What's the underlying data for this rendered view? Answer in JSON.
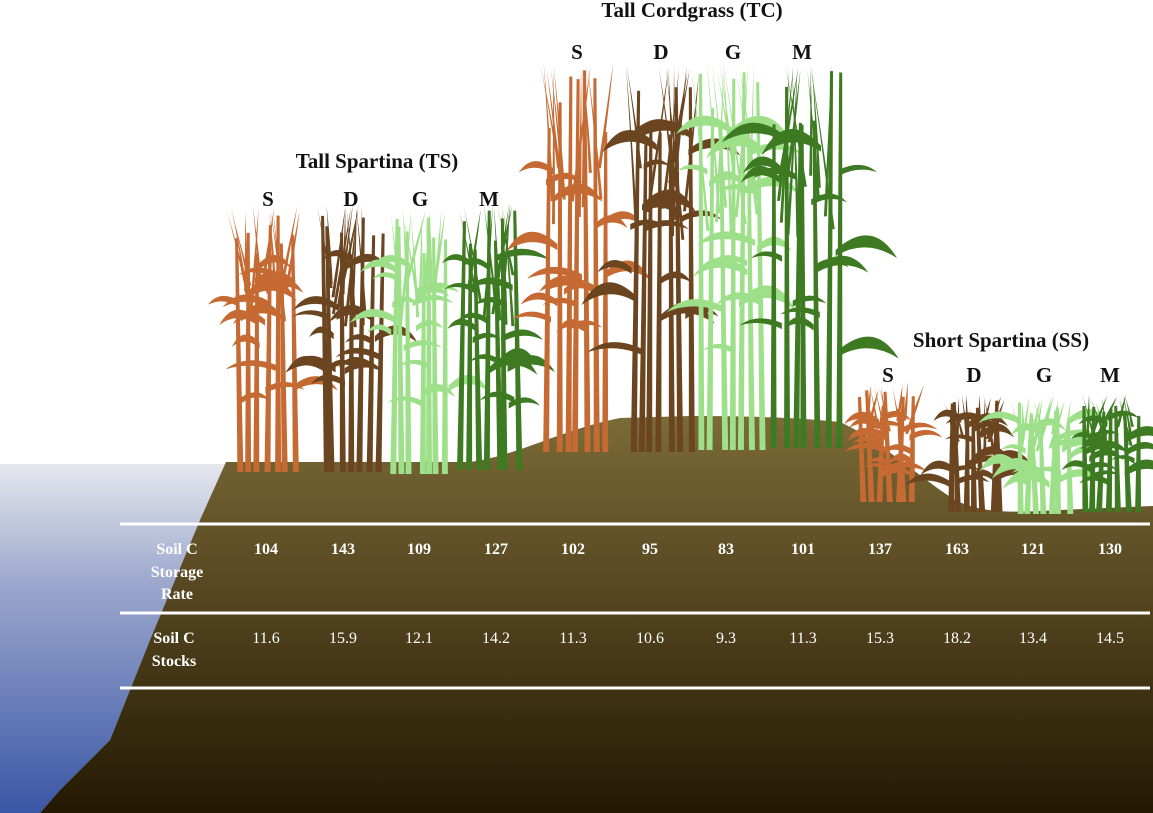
{
  "groups": [
    {
      "id": "ts",
      "title": "Tall Spartina (TS)",
      "letters": [
        "S",
        "D",
        "G",
        "M"
      ]
    },
    {
      "id": "tc",
      "title": "Tall Cordgrass (TC)",
      "letters": [
        "S",
        "D",
        "G",
        "M"
      ]
    },
    {
      "id": "ss",
      "title": "Short Spartina (SS)",
      "letters": [
        "S",
        "D",
        "G",
        "M"
      ]
    }
  ],
  "species_colors": {
    "S": "#c46a32",
    "D": "#6b4420",
    "G": "#9ee08a",
    "M": "#3d7a22"
  },
  "colors": {
    "soil_top": "#7a6a36",
    "soil_bottom": "#241a04",
    "water": "#3f5aa8",
    "rule": "#ffffff"
  },
  "table": {
    "rows": [
      {
        "id": "rate",
        "label_lines": [
          "Soil C",
          "Storage",
          "Rate"
        ],
        "values": [
          "104",
          "143",
          "109",
          "127",
          "102",
          "95",
          "83",
          "101",
          "137",
          "163",
          "121",
          "130"
        ]
      },
      {
        "id": "stocks",
        "label_lines": [
          "Soil C",
          "Stocks"
        ],
        "values": [
          "11.6",
          "15.9",
          "12.1",
          "14.2",
          "11.3",
          "10.6",
          "9.3",
          "11.3",
          "15.3",
          "18.2",
          "13.4",
          "14.5"
        ]
      }
    ]
  }
}
